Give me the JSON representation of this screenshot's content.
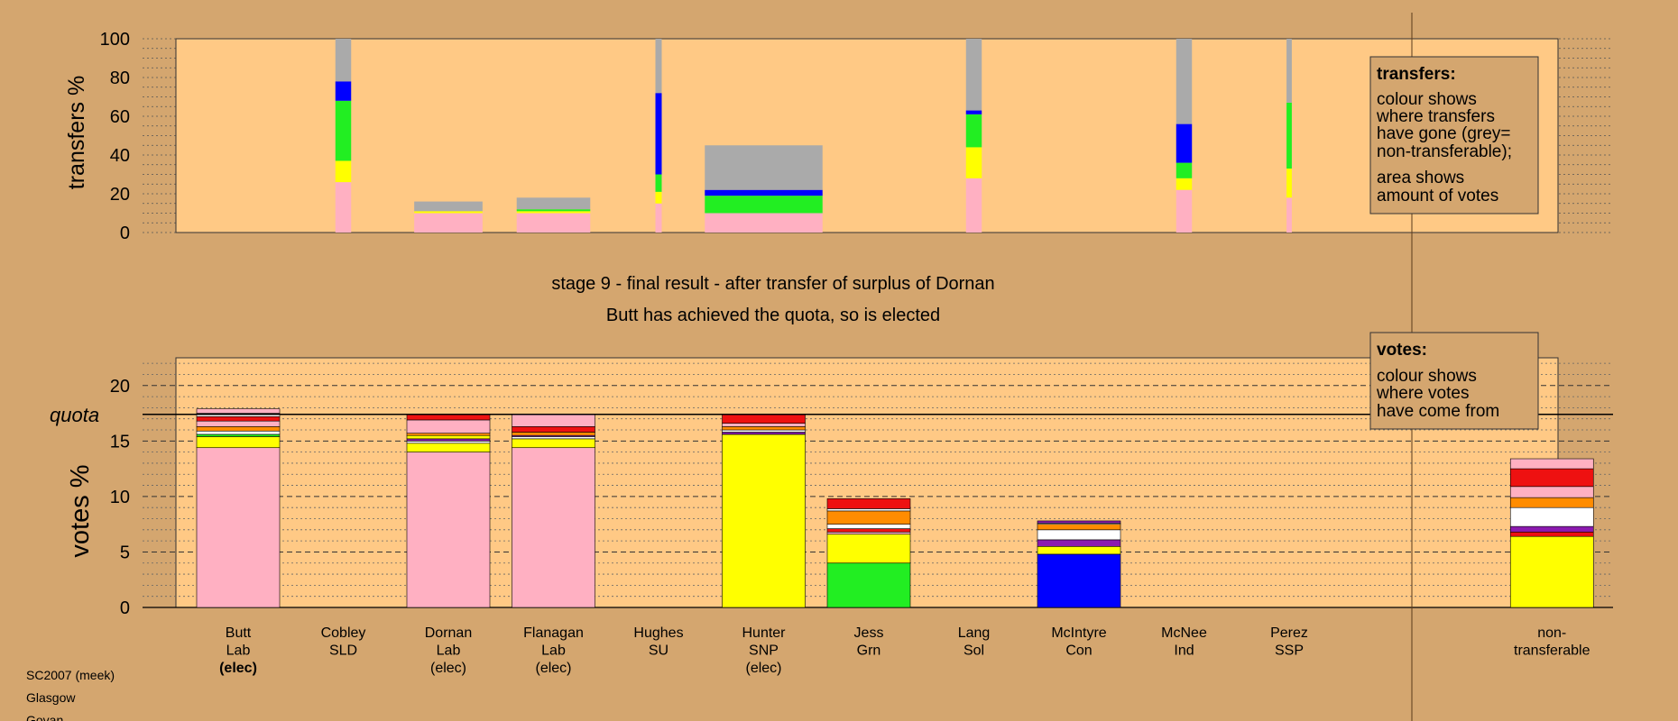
{
  "colors": {
    "background": "#d4a66f",
    "panel": "#ffc985",
    "Lab": "#ffb0c2",
    "SNP": "#ffff00",
    "Grn": "#22ee22",
    "Con": "#0000ff",
    "SSP": "#ee1111",
    "Sol": "#ff0000",
    "SLD": "#ff8c00",
    "Ind": "#ffffff",
    "SU": "#8b1ab0",
    "nontransferable": "#aaaaaa"
  },
  "top_axis_label": "transfers %",
  "bottom_axis_label": "votes %",
  "quota_label": "quota",
  "stage_line1": "stage 9 - final result - after transfer of surplus of Dornan",
  "stage_line2": "Butt has achieved the quota, so is elected",
  "legend_transfers": {
    "title": "transfers:",
    "lines1": [
      "colour shows",
      "where transfers",
      "have gone (grey=",
      "non-transferable);"
    ],
    "lines2": [
      "area shows",
      "amount of votes"
    ]
  },
  "legend_votes": {
    "title": "votes:",
    "lines": [
      "colour shows",
      "where votes",
      "have come from"
    ]
  },
  "footer": [
    "SC2007 (meek)",
    "Glasgow",
    "Govan"
  ],
  "chart_data": [
    {
      "type": "bar",
      "name": "transfers",
      "ylabel": "transfers %",
      "ylim": [
        0,
        100
      ],
      "yticks": [
        0,
        20,
        40,
        60,
        80,
        100
      ],
      "grid": true,
      "bars": [
        {
          "pos": 1,
          "width": 0.15,
          "segments": [
            {
              "c": "Lab",
              "v": 26
            },
            {
              "c": "SNP",
              "v": 11
            },
            {
              "c": "Grn",
              "v": 31
            },
            {
              "c": "Con",
              "v": 10
            },
            {
              "c": "nontransferable",
              "v": 22
            }
          ]
        },
        {
          "pos": 2,
          "width": 0.65,
          "segments": [
            {
              "c": "Lab",
              "v": 10
            },
            {
              "c": "SNP",
              "v": 1
            },
            {
              "c": "nontransferable",
              "v": 5
            }
          ]
        },
        {
          "pos": 3,
          "width": 0.7,
          "segments": [
            {
              "c": "Lab",
              "v": 10
            },
            {
              "c": "SNP",
              "v": 1
            },
            {
              "c": "Grn",
              "v": 1
            },
            {
              "c": "nontransferable",
              "v": 6
            }
          ]
        },
        {
          "pos": 4,
          "width": 0.06,
          "segments": [
            {
              "c": "Lab",
              "v": 15
            },
            {
              "c": "SNP",
              "v": 6
            },
            {
              "c": "Grn",
              "v": 9
            },
            {
              "c": "Con",
              "v": 42
            },
            {
              "c": "nontransferable",
              "v": 28
            }
          ]
        },
        {
          "pos": 5,
          "width": 1.12,
          "segments": [
            {
              "c": "Lab",
              "v": 10
            },
            {
              "c": "Grn",
              "v": 9
            },
            {
              "c": "Con",
              "v": 3
            },
            {
              "c": "nontransferable",
              "v": 23
            }
          ]
        },
        {
          "pos": 7,
          "width": 0.15,
          "segments": [
            {
              "c": "Lab",
              "v": 28
            },
            {
              "c": "SNP",
              "v": 16
            },
            {
              "c": "Grn",
              "v": 17
            },
            {
              "c": "Con",
              "v": 2
            },
            {
              "c": "nontransferable",
              "v": 37
            }
          ]
        },
        {
          "pos": 9,
          "width": 0.15,
          "segments": [
            {
              "c": "Lab",
              "v": 22
            },
            {
              "c": "SNP",
              "v": 6
            },
            {
              "c": "Grn",
              "v": 8
            },
            {
              "c": "Con",
              "v": 20
            },
            {
              "c": "nontransferable",
              "v": 44
            }
          ]
        },
        {
          "pos": 10,
          "width": 0.05,
          "segments": [
            {
              "c": "Lab",
              "v": 18
            },
            {
              "c": "SNP",
              "v": 15
            },
            {
              "c": "Grn",
              "v": 34
            },
            {
              "c": "nontransferable",
              "v": 33
            }
          ]
        }
      ]
    },
    {
      "type": "bar",
      "name": "votes",
      "ylabel": "votes %",
      "ylim": [
        0,
        22.5
      ],
      "yticks": [
        0,
        5,
        10,
        15,
        20
      ],
      "quota": 17.4,
      "candidates": [
        {
          "name": "Butt",
          "party": "Lab",
          "status": "(elec)",
          "bold": true
        },
        {
          "name": "Cobley",
          "party": "SLD",
          "status": ""
        },
        {
          "name": "Dornan",
          "party": "Lab",
          "status": "(elec)"
        },
        {
          "name": "Flanagan",
          "party": "Lab",
          "status": "(elec)"
        },
        {
          "name": "Hughes",
          "party": "SU",
          "status": ""
        },
        {
          "name": "Hunter",
          "party": "SNP",
          "status": "(elec)"
        },
        {
          "name": "Jess",
          "party": "Grn",
          "status": ""
        },
        {
          "name": "Lang",
          "party": "Sol",
          "status": ""
        },
        {
          "name": "McIntyre",
          "party": "Con",
          "status": ""
        },
        {
          "name": "McNee",
          "party": "Ind",
          "status": ""
        },
        {
          "name": "Perez",
          "party": "SSP",
          "status": ""
        },
        {
          "name": "non-",
          "party": "transferable",
          "status": "",
          "pos": 12.5
        }
      ],
      "bars": [
        {
          "pos": 0,
          "segments": [
            {
              "c": "Lab",
              "v": 14.4
            },
            {
              "c": "SNP",
              "v": 1.0
            },
            {
              "c": "Grn",
              "v": 0.2
            },
            {
              "c": "Ind",
              "v": 0.3
            },
            {
              "c": "SLD",
              "v": 0.4
            },
            {
              "c": "Lab",
              "v": 0.5
            },
            {
              "c": "SSP",
              "v": 0.4
            },
            {
              "c": "Ind",
              "v": 0.3
            },
            {
              "c": "Lab",
              "v": 0.4
            }
          ]
        },
        {
          "pos": 2,
          "segments": [
            {
              "c": "Lab",
              "v": 14.0
            },
            {
              "c": "SNP",
              "v": 0.8
            },
            {
              "c": "Ind",
              "v": 0.2
            },
            {
              "c": "SU",
              "v": 0.2
            },
            {
              "c": "SNP",
              "v": 0.3
            },
            {
              "c": "SLD",
              "v": 0.2
            },
            {
              "c": "Lab",
              "v": 1.2
            },
            {
              "c": "SSP",
              "v": 0.5
            }
          ]
        },
        {
          "pos": 3,
          "segments": [
            {
              "c": "Lab",
              "v": 14.4
            },
            {
              "c": "SNP",
              "v": 0.8
            },
            {
              "c": "Ind",
              "v": 0.2
            },
            {
              "c": "SU",
              "v": 0.1
            },
            {
              "c": "SLD",
              "v": 0.3
            },
            {
              "c": "SSP",
              "v": 0.5
            },
            {
              "c": "Lab",
              "v": 1.1
            }
          ]
        },
        {
          "pos": 5,
          "segments": [
            {
              "c": "SNP",
              "v": 15.6
            },
            {
              "c": "SU",
              "v": 0.2
            },
            {
              "c": "Ind",
              "v": 0.2
            },
            {
              "c": "SLD",
              "v": 0.3
            },
            {
              "c": "Lab",
              "v": 0.3
            },
            {
              "c": "SSP",
              "v": 0.8
            }
          ]
        },
        {
          "pos": 6,
          "segments": [
            {
              "c": "Grn",
              "v": 4.0
            },
            {
              "c": "SNP",
              "v": 2.6
            },
            {
              "c": "Lab",
              "v": 0.2
            },
            {
              "c": "SSP",
              "v": 0.3
            },
            {
              "c": "Ind",
              "v": 0.4
            },
            {
              "c": "SLD",
              "v": 1.2
            },
            {
              "c": "Ind",
              "v": 0.2
            },
            {
              "c": "SSP",
              "v": 0.9
            }
          ]
        },
        {
          "pos": 8,
          "segments": [
            {
              "c": "Con",
              "v": 4.8
            },
            {
              "c": "SNP",
              "v": 0.7
            },
            {
              "c": "SU",
              "v": 0.6
            },
            {
              "c": "Ind",
              "v": 0.9
            },
            {
              "c": "SLD",
              "v": 0.5
            },
            {
              "c": "Ind",
              "v": 0.1
            },
            {
              "c": "SU",
              "v": 0.2
            }
          ]
        },
        {
          "pos": 12.5,
          "segments": [
            {
              "c": "SNP",
              "v": 6.4
            },
            {
              "c": "SSP",
              "v": 0.4
            },
            {
              "c": "SU",
              "v": 0.5
            },
            {
              "c": "Ind",
              "v": 1.7
            },
            {
              "c": "SLD",
              "v": 0.9
            },
            {
              "c": "Lab",
              "v": 1.0
            },
            {
              "c": "SSP",
              "v": 1.6
            },
            {
              "c": "Lab",
              "v": 0.9
            }
          ]
        }
      ]
    }
  ]
}
